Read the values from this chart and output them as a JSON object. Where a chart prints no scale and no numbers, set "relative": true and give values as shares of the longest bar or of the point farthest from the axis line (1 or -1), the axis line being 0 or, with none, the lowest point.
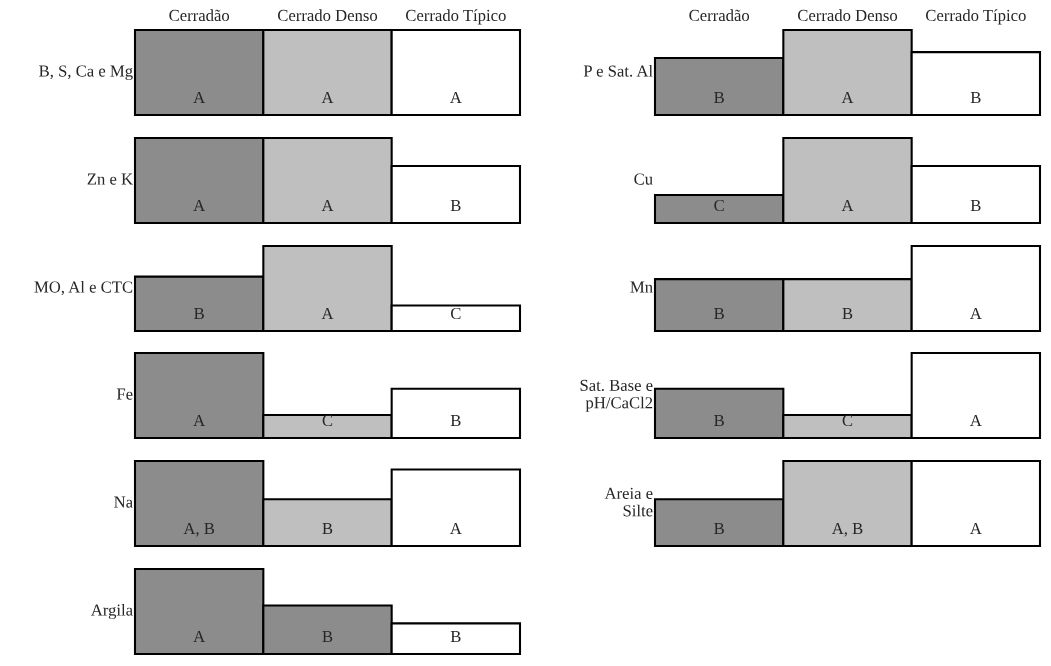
{
  "chart_data": [
    {
      "type": "bar",
      "relative": true,
      "ylabel": "B, S, Ca e Mg",
      "categories": [
        "Cerradão",
        "Cerrado Denso",
        "Cerrado Típico"
      ],
      "values": [
        1,
        1,
        1
      ],
      "colors": [
        "#8c8c8c",
        "#bfbfbf",
        "#ffffff"
      ],
      "annotations": [
        "A",
        "A",
        "A"
      ]
    },
    {
      "type": "bar",
      "relative": true,
      "ylabel": "P e Sat. Al",
      "categories": [
        "Cerradão",
        "Cerrado Denso",
        "Cerrado Típico"
      ],
      "values": [
        0.67,
        1,
        0.74
      ],
      "colors": [
        "#8c8c8c",
        "#bfbfbf",
        "#ffffff"
      ],
      "annotations": [
        "B",
        "A",
        "B"
      ]
    },
    {
      "type": "bar",
      "relative": true,
      "ylabel": "Zn e K",
      "categories": [
        null,
        null,
        null
      ],
      "values": [
        1,
        1,
        0.67
      ],
      "colors": [
        "#8c8c8c",
        "#bfbfbf",
        "#ffffff"
      ],
      "annotations": [
        "A",
        "A",
        "B"
      ]
    },
    {
      "type": "bar",
      "relative": true,
      "ylabel": "Cu",
      "categories": [
        null,
        null,
        null
      ],
      "values": [
        0.33,
        1,
        0.67
      ],
      "colors": [
        "#8c8c8c",
        "#bfbfbf",
        "#ffffff"
      ],
      "annotations": [
        "C",
        "A",
        "B"
      ]
    },
    {
      "type": "bar",
      "relative": true,
      "ylabel": "MO, Al e CTC",
      "categories": [
        null,
        null,
        null
      ],
      "values": [
        0.64,
        1,
        0.3
      ],
      "colors": [
        "#8c8c8c",
        "#bfbfbf",
        "#ffffff"
      ],
      "annotations": [
        "B",
        "A",
        "C"
      ]
    },
    {
      "type": "bar",
      "relative": true,
      "ylabel": "Mn",
      "categories": [
        null,
        null,
        null
      ],
      "values": [
        0.61,
        0.61,
        1
      ],
      "colors": [
        "#8c8c8c",
        "#bfbfbf",
        "#ffffff"
      ],
      "annotations": [
        "B",
        "B",
        "A"
      ]
    },
    {
      "type": "bar",
      "relative": true,
      "ylabel": "Fe",
      "categories": [
        null,
        null,
        null
      ],
      "values": [
        1,
        0.27,
        0.58
      ],
      "colors": [
        "#8c8c8c",
        "#bfbfbf",
        "#ffffff"
      ],
      "annotations": [
        "A",
        "C",
        "B"
      ]
    },
    {
      "type": "bar",
      "relative": true,
      "ylabel": "Sat. Base e\npH/CaCl2",
      "categories": [
        null,
        null,
        null
      ],
      "values": [
        0.58,
        0.27,
        1
      ],
      "colors": [
        "#8c8c8c",
        "#bfbfbf",
        "#ffffff"
      ],
      "annotations": [
        "B",
        "C",
        "A"
      ]
    },
    {
      "type": "bar",
      "relative": true,
      "ylabel": "Na",
      "categories": [
        null,
        null,
        null
      ],
      "values": [
        1,
        0.55,
        0.9
      ],
      "colors": [
        "#8c8c8c",
        "#bfbfbf",
        "#ffffff"
      ],
      "annotations": [
        "A, B",
        "B",
        "A"
      ]
    },
    {
      "type": "bar",
      "relative": true,
      "ylabel": "Areia e\nSilte",
      "categories": [
        null,
        null,
        null
      ],
      "values": [
        0.55,
        1,
        1
      ],
      "colors": [
        "#8c8c8c",
        "#bfbfbf",
        "#ffffff"
      ],
      "annotations": [
        "B",
        "A, B",
        "A"
      ]
    },
    {
      "type": "bar",
      "relative": true,
      "ylabel": "Argila",
      "categories": [
        null,
        null,
        null
      ],
      "values": [
        1,
        0.57,
        0.36
      ],
      "colors": [
        "#8c8c8c",
        "#8c8c8c",
        "#ffffff"
      ],
      "annotations": [
        "A",
        "B",
        "B"
      ]
    }
  ]
}
